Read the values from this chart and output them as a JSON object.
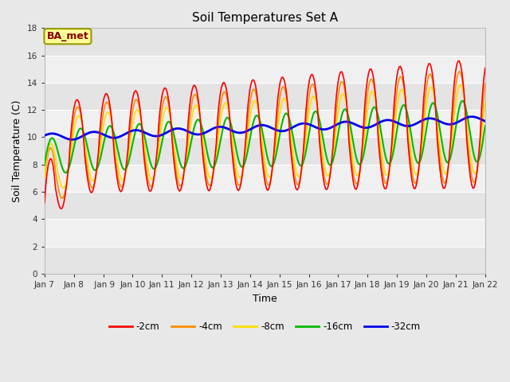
{
  "title": "Soil Temperatures Set A",
  "xlabel": "Time",
  "ylabel": "Soil Temperature (C)",
  "ylim": [
    0,
    18
  ],
  "yticks": [
    0,
    2,
    4,
    6,
    8,
    10,
    12,
    14,
    16,
    18
  ],
  "x_labels": [
    "Jan 7",
    "Jan 8",
    " Jan 9",
    "Jan 10",
    "Jan 11",
    "Jan 12",
    "Jan 13",
    "Jan 14",
    "Jan 15",
    "Jan 16",
    "Jan 17",
    "Jan 18",
    "Jan 19",
    "Jan 20",
    "Jan 21",
    "Jan 22"
  ],
  "annotation_text": "BA_met",
  "annotation_color": "#8B0000",
  "annotation_bg": "#FFFF99",
  "annotation_border": "#999900",
  "fig_bg": "#E8E8E8",
  "plot_bg": "#F0F0F0",
  "band_color": "#DCDCDC",
  "grid_color": "#FFFFFF",
  "colors": {
    "-2cm": "#FF0000",
    "-4cm": "#FF8C00",
    "-8cm": "#FFDD00",
    "-16cm": "#00BB00",
    "-32cm": "#0000EE"
  },
  "line_widths": {
    "-2cm": 1.2,
    "-4cm": 1.2,
    "-8cm": 1.2,
    "-16cm": 1.5,
    "-32cm": 2.0
  }
}
